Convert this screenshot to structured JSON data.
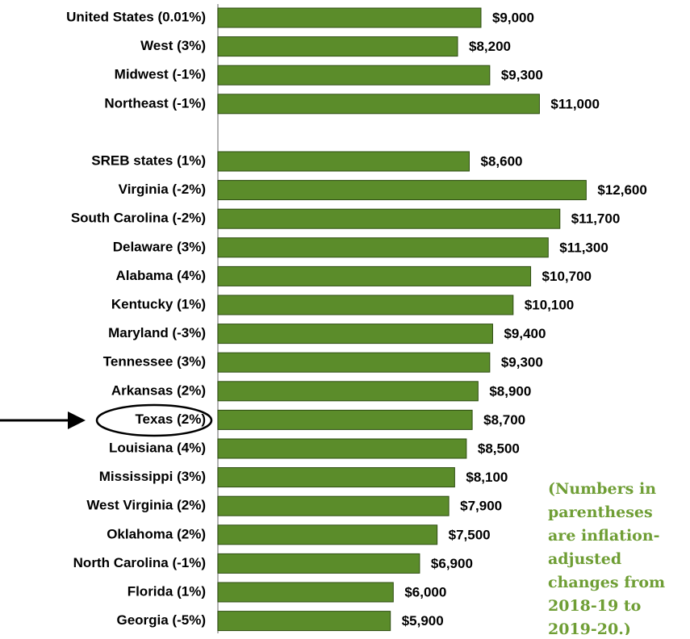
{
  "chart_data": {
    "type": "bar",
    "orientation": "horizontal",
    "categories": [
      "United States (0.01%)",
      "West (3%)",
      "Midwest (-1%)",
      "Northeast (-1%)",
      null,
      "SREB states (1%)",
      "Virginia (-2%)",
      "South Carolina (-2%)",
      "Delaware (3%)",
      "Alabama (4%)",
      "Kentucky (1%)",
      "Maryland (-3%)",
      "Tennessee (3%)",
      "Arkansas (2%)",
      "Texas (2%)",
      "Louisiana (4%)",
      "Mississippi (3%)",
      "West Virginia (2%)",
      "Oklahoma (2%)",
      "North Carolina (-1%)",
      "Florida (1%)",
      "Georgia (-5%)"
    ],
    "values": [
      9000,
      8200,
      9300,
      11000,
      null,
      8600,
      12600,
      11700,
      11300,
      10700,
      10100,
      9400,
      9300,
      8900,
      8700,
      8500,
      8100,
      7900,
      7500,
      6900,
      6000,
      5900
    ],
    "value_labels": [
      "$9,000",
      "$8,200",
      "$9,300",
      "$11,000",
      null,
      "$8,600",
      "$12,600",
      "$11,700",
      "$11,300",
      "$10,700",
      "$10,100",
      "$9,400",
      "$9,300",
      "$8,900",
      "$8,700",
      "$8,500",
      "$8,100",
      "$7,900",
      "$7,500",
      "$6,900",
      "$6,000",
      "$5,900"
    ],
    "color": "#5b8c2a",
    "annotation": [
      "(Numbers in",
      "parentheses",
      "are inflation-",
      "adjusted",
      "changes from",
      "2018-19 to",
      "2019-20.)"
    ]
  }
}
